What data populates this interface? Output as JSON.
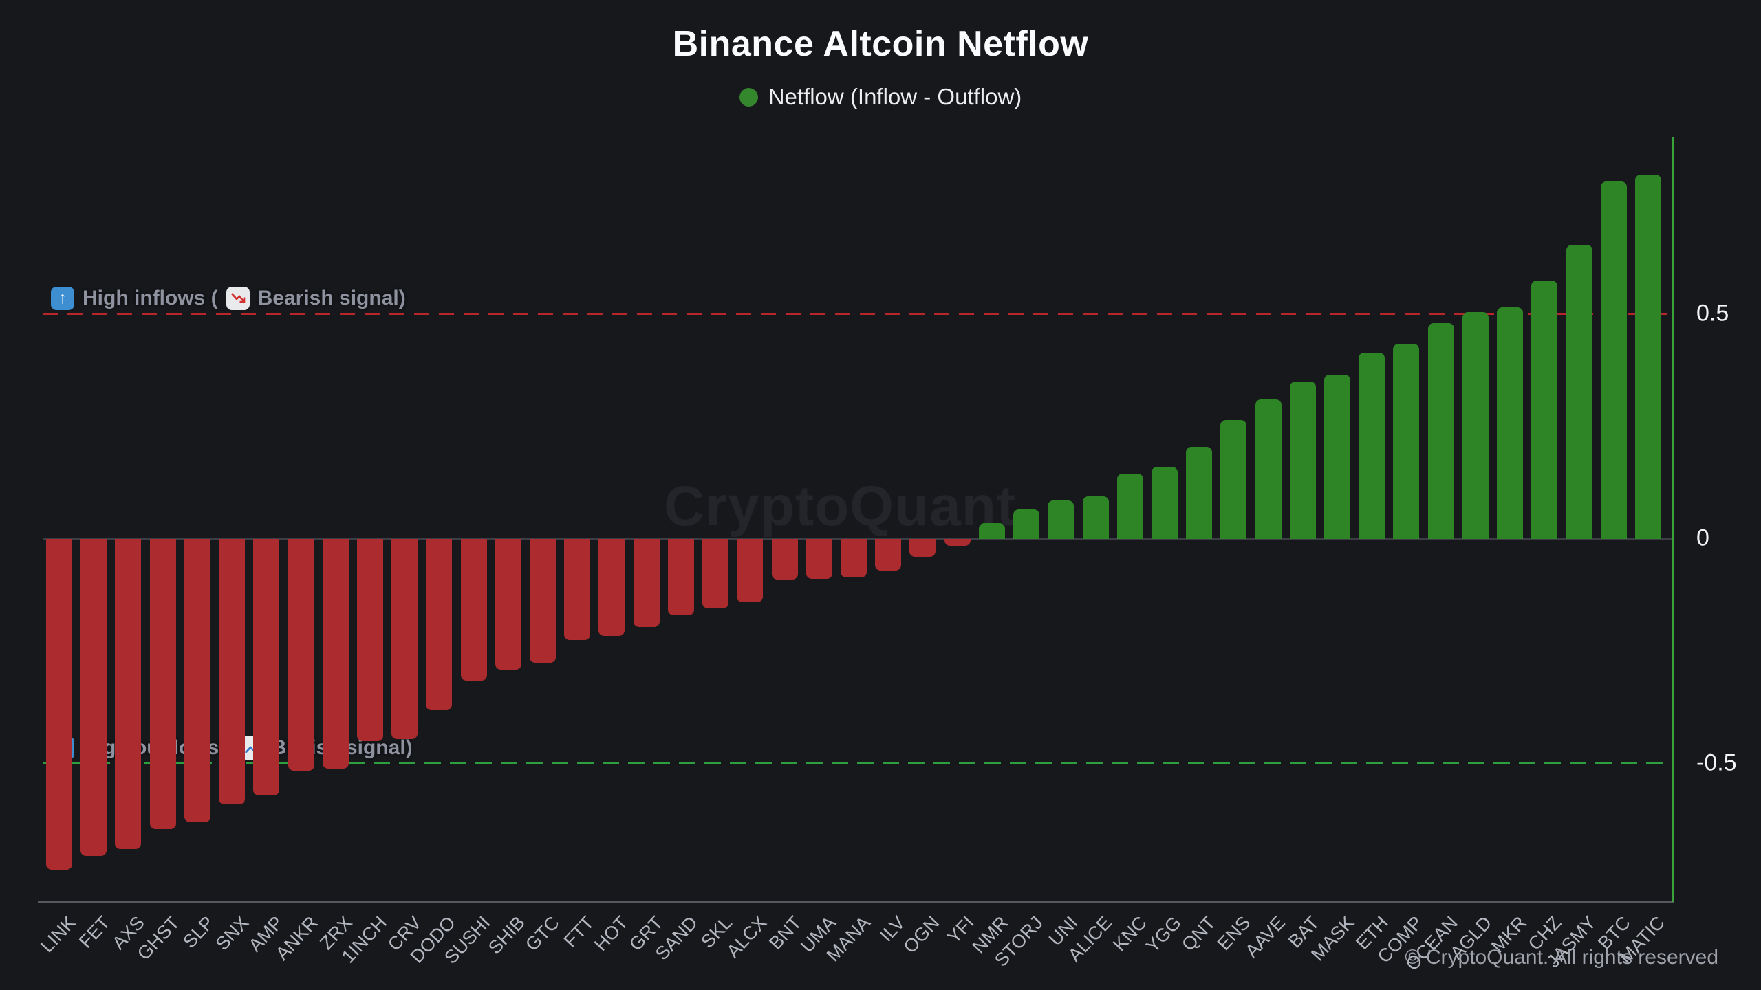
{
  "header": {
    "title": "Binance Altcoin Netflow",
    "legend": {
      "label": "Netflow (Inflow - Outflow)"
    }
  },
  "annotations": {
    "high_inflows": {
      "arrow_glyph": "↑",
      "text": "High inflows (",
      "signal_text": "Bearish signal)",
      "line_value": 0.5
    },
    "high_outflows": {
      "arrow_glyph": "↓",
      "text": "High outflows (",
      "signal_text": "Bullish signal)",
      "line_value": -0.5
    }
  },
  "y_axis": {
    "ticks": [
      {
        "label": "0.5",
        "value": 0.5
      },
      {
        "label": "0",
        "value": 0
      },
      {
        "label": "-0.5",
        "value": -0.5
      }
    ]
  },
  "watermark": "CryptoQuant",
  "copyright": "© CryptoQuant. All rights reserved",
  "colors": {
    "bar_negative": "#ab2b2e",
    "bar_positive": "#2e8526",
    "legend_dot": "#35872e",
    "threshold_red": "#b8262c",
    "threshold_green": "#2f9e3f",
    "right_axis_green": "#3aa23a",
    "background": "#17181c"
  },
  "chart_data": {
    "type": "bar",
    "title": "Binance Altcoin Netflow",
    "legend": [
      "Netflow (Inflow - Outflow)"
    ],
    "xlabel": "",
    "ylabel": "",
    "ylim": [
      -0.81,
      0.89
    ],
    "grid": "zero-line only",
    "legend_position": "top-center",
    "categories": [
      "LINK",
      "FET",
      "AXS",
      "GHST",
      "SLP",
      "SNX",
      "AMP",
      "ANKR",
      "ZRX",
      "1INCH",
      "CRV",
      "DODO",
      "SUSHI",
      "SHIB",
      "GTC",
      "FTT",
      "HOT",
      "GRT",
      "SAND",
      "SKL",
      "ALCX",
      "BNT",
      "UMA",
      "MANA",
      "ILV",
      "OGN",
      "YFI",
      "NMR",
      "STORJ",
      "UNI",
      "ALICE",
      "KNC",
      "YGG",
      "QNT",
      "ENS",
      "AAVE",
      "BAT",
      "MASK",
      "ETH",
      "COMP",
      "OCEAN",
      "AGLD",
      "MKR",
      "CHZ",
      "JASMY",
      "BTC",
      "MATIC"
    ],
    "values": [
      -0.735,
      -0.705,
      -0.69,
      -0.645,
      -0.63,
      -0.59,
      -0.57,
      -0.515,
      -0.51,
      -0.45,
      -0.445,
      -0.38,
      -0.315,
      -0.29,
      -0.275,
      -0.225,
      -0.215,
      -0.195,
      -0.17,
      -0.155,
      -0.14,
      -0.09,
      -0.088,
      -0.085,
      -0.07,
      -0.04,
      -0.015,
      0.035,
      0.065,
      0.085,
      0.095,
      0.145,
      0.16,
      0.205,
      0.265,
      0.31,
      0.35,
      0.365,
      0.415,
      0.435,
      0.48,
      0.505,
      0.515,
      0.575,
      0.655,
      0.795,
      0.81
    ],
    "reference_lines": [
      {
        "value": 0.5,
        "style": "dashed",
        "color": "#b8262c",
        "label": "High inflows (Bearish signal)"
      },
      {
        "value": -0.5,
        "style": "dashed",
        "color": "#2f9e3f",
        "label": "High outflows (Bullish signal)"
      }
    ]
  }
}
